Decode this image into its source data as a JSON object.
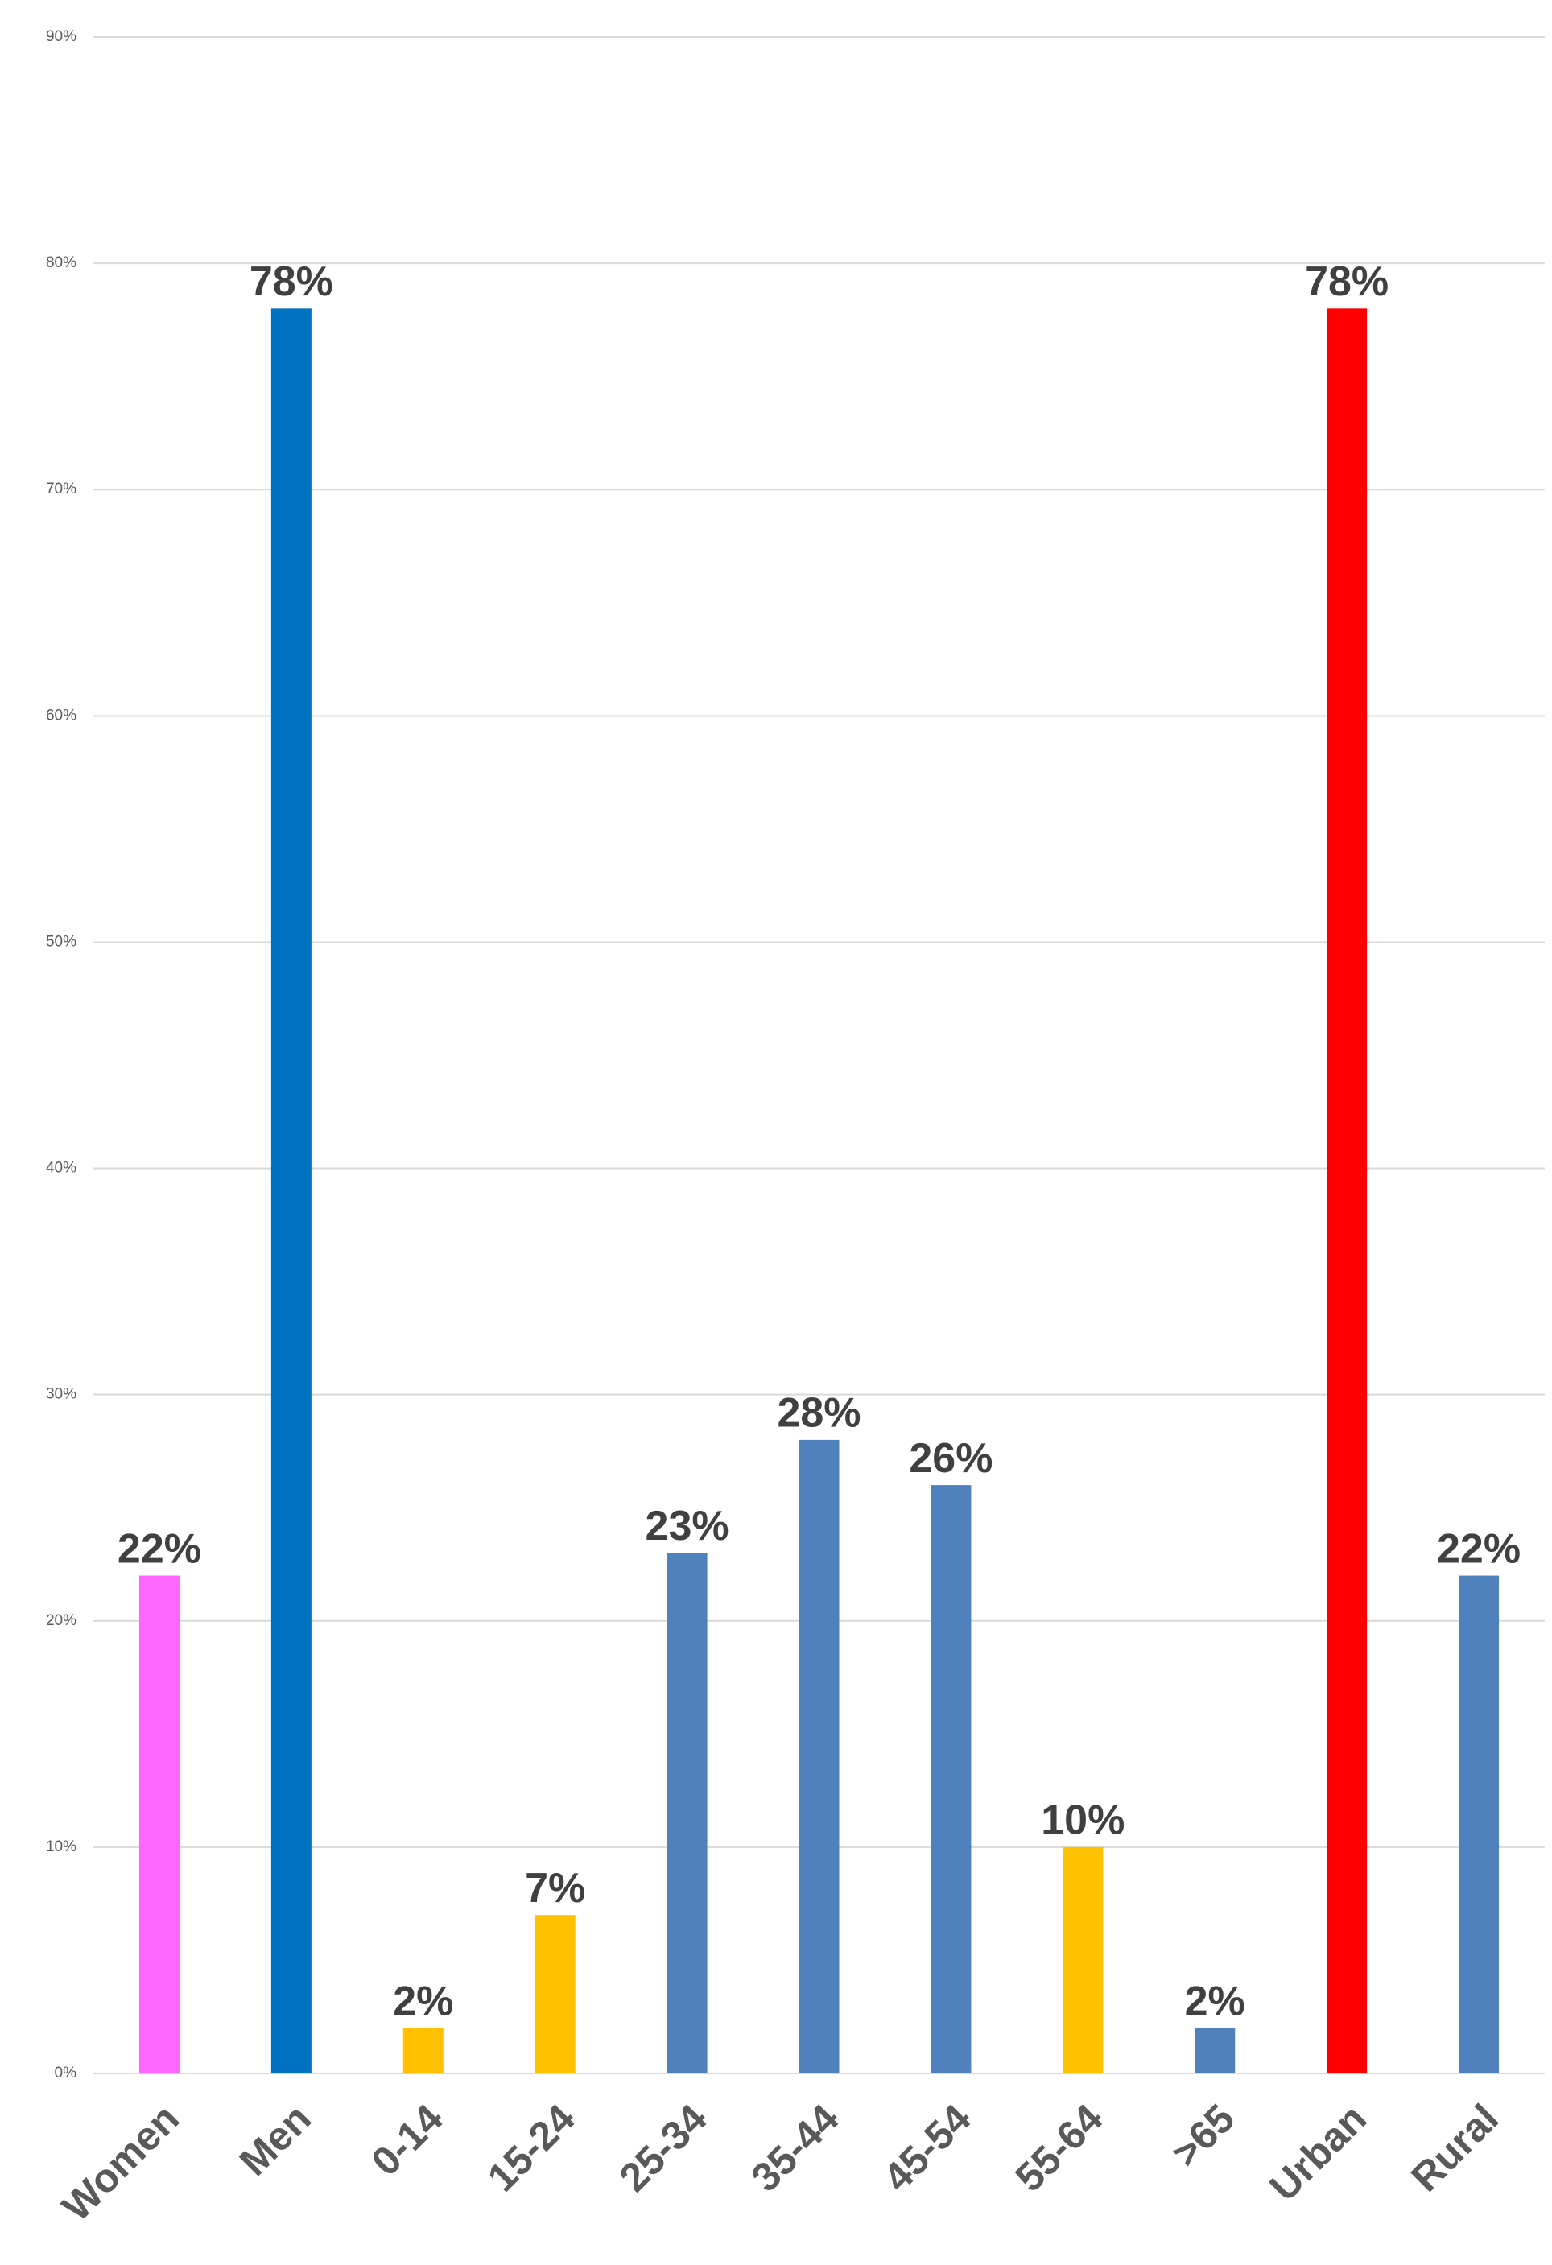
{
  "chart_data": {
    "type": "bar",
    "categories": [
      "Women",
      "Men",
      "0-14",
      "15-24",
      "25-34",
      "35-44",
      "45-54",
      "55-64",
      ">65",
      "Urban",
      "Rural"
    ],
    "values": [
      22,
      78,
      2,
      7,
      23,
      28,
      26,
      10,
      2,
      78,
      22
    ],
    "value_labels": [
      "22%",
      "78%",
      "2%",
      "7%",
      "23%",
      "28%",
      "26%",
      "10%",
      "2%",
      "78%",
      "22%"
    ],
    "colors": [
      "#ff66ff",
      "#0070c0",
      "#ffc000",
      "#ffc000",
      "#4f81bd",
      "#4f81bd",
      "#4f81bd",
      "#ffc000",
      "#4f81bd",
      "#ff0000",
      "#4f81bd"
    ],
    "ylim": [
      0,
      90
    ],
    "yticks": [
      {
        "value": 0,
        "label": "0%"
      },
      {
        "value": 10,
        "label": "10%"
      },
      {
        "value": 20,
        "label": "20%"
      },
      {
        "value": 30,
        "label": "30%"
      },
      {
        "value": 40,
        "label": "40%"
      },
      {
        "value": 50,
        "label": "50%"
      },
      {
        "value": 60,
        "label": "60%"
      },
      {
        "value": 70,
        "label": "70%"
      },
      {
        "value": 80,
        "label": "80%"
      },
      {
        "value": 90,
        "label": "90%"
      }
    ],
    "grid": true
  }
}
